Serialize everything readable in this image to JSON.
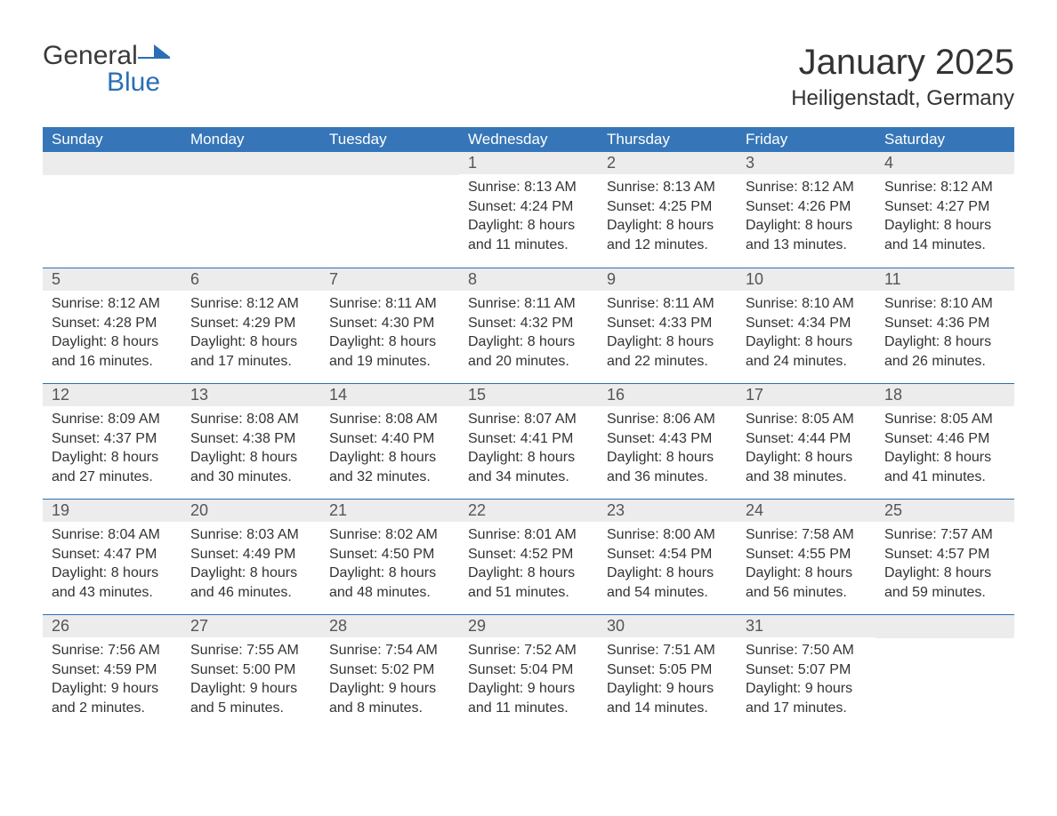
{
  "brand": {
    "text_general": "General",
    "text_blue": "Blue",
    "general_color": "#3a3a3a",
    "blue_color": "#2a6fb5",
    "mark_color": "#2a6fb5"
  },
  "header": {
    "month_title": "January 2025",
    "location": "Heiligenstadt, Germany",
    "title_fontsize": 40,
    "location_fontsize": 24,
    "text_color": "#333333"
  },
  "styling": {
    "page_background": "#ffffff",
    "header_row_background": "#3676b8",
    "header_text_color": "#ffffff",
    "week_divider_color": "#2a6fb5",
    "daynum_row_background": "#ececec",
    "body_text_color": "#333333",
    "daynum_text_color": "#555555",
    "header_fontsize": 17,
    "daynum_fontsize": 18,
    "body_fontsize": 16,
    "columns": 7
  },
  "day_names": [
    "Sunday",
    "Monday",
    "Tuesday",
    "Wednesday",
    "Thursday",
    "Friday",
    "Saturday"
  ],
  "weeks": [
    [
      null,
      null,
      null,
      {
        "n": "1",
        "sunrise": "8:13 AM",
        "sunset": "4:24 PM",
        "daylight_h": 8,
        "daylight_m": 11
      },
      {
        "n": "2",
        "sunrise": "8:13 AM",
        "sunset": "4:25 PM",
        "daylight_h": 8,
        "daylight_m": 12
      },
      {
        "n": "3",
        "sunrise": "8:12 AM",
        "sunset": "4:26 PM",
        "daylight_h": 8,
        "daylight_m": 13
      },
      {
        "n": "4",
        "sunrise": "8:12 AM",
        "sunset": "4:27 PM",
        "daylight_h": 8,
        "daylight_m": 14
      }
    ],
    [
      {
        "n": "5",
        "sunrise": "8:12 AM",
        "sunset": "4:28 PM",
        "daylight_h": 8,
        "daylight_m": 16
      },
      {
        "n": "6",
        "sunrise": "8:12 AM",
        "sunset": "4:29 PM",
        "daylight_h": 8,
        "daylight_m": 17
      },
      {
        "n": "7",
        "sunrise": "8:11 AM",
        "sunset": "4:30 PM",
        "daylight_h": 8,
        "daylight_m": 19
      },
      {
        "n": "8",
        "sunrise": "8:11 AM",
        "sunset": "4:32 PM",
        "daylight_h": 8,
        "daylight_m": 20
      },
      {
        "n": "9",
        "sunrise": "8:11 AM",
        "sunset": "4:33 PM",
        "daylight_h": 8,
        "daylight_m": 22
      },
      {
        "n": "10",
        "sunrise": "8:10 AM",
        "sunset": "4:34 PM",
        "daylight_h": 8,
        "daylight_m": 24
      },
      {
        "n": "11",
        "sunrise": "8:10 AM",
        "sunset": "4:36 PM",
        "daylight_h": 8,
        "daylight_m": 26
      }
    ],
    [
      {
        "n": "12",
        "sunrise": "8:09 AM",
        "sunset": "4:37 PM",
        "daylight_h": 8,
        "daylight_m": 27
      },
      {
        "n": "13",
        "sunrise": "8:08 AM",
        "sunset": "4:38 PM",
        "daylight_h": 8,
        "daylight_m": 30
      },
      {
        "n": "14",
        "sunrise": "8:08 AM",
        "sunset": "4:40 PM",
        "daylight_h": 8,
        "daylight_m": 32
      },
      {
        "n": "15",
        "sunrise": "8:07 AM",
        "sunset": "4:41 PM",
        "daylight_h": 8,
        "daylight_m": 34
      },
      {
        "n": "16",
        "sunrise": "8:06 AM",
        "sunset": "4:43 PM",
        "daylight_h": 8,
        "daylight_m": 36
      },
      {
        "n": "17",
        "sunrise": "8:05 AM",
        "sunset": "4:44 PM",
        "daylight_h": 8,
        "daylight_m": 38
      },
      {
        "n": "18",
        "sunrise": "8:05 AM",
        "sunset": "4:46 PM",
        "daylight_h": 8,
        "daylight_m": 41
      }
    ],
    [
      {
        "n": "19",
        "sunrise": "8:04 AM",
        "sunset": "4:47 PM",
        "daylight_h": 8,
        "daylight_m": 43
      },
      {
        "n": "20",
        "sunrise": "8:03 AM",
        "sunset": "4:49 PM",
        "daylight_h": 8,
        "daylight_m": 46
      },
      {
        "n": "21",
        "sunrise": "8:02 AM",
        "sunset": "4:50 PM",
        "daylight_h": 8,
        "daylight_m": 48
      },
      {
        "n": "22",
        "sunrise": "8:01 AM",
        "sunset": "4:52 PM",
        "daylight_h": 8,
        "daylight_m": 51
      },
      {
        "n": "23",
        "sunrise": "8:00 AM",
        "sunset": "4:54 PM",
        "daylight_h": 8,
        "daylight_m": 54
      },
      {
        "n": "24",
        "sunrise": "7:58 AM",
        "sunset": "4:55 PM",
        "daylight_h": 8,
        "daylight_m": 56
      },
      {
        "n": "25",
        "sunrise": "7:57 AM",
        "sunset": "4:57 PM",
        "daylight_h": 8,
        "daylight_m": 59
      }
    ],
    [
      {
        "n": "26",
        "sunrise": "7:56 AM",
        "sunset": "4:59 PM",
        "daylight_h": 9,
        "daylight_m": 2
      },
      {
        "n": "27",
        "sunrise": "7:55 AM",
        "sunset": "5:00 PM",
        "daylight_h": 9,
        "daylight_m": 5
      },
      {
        "n": "28",
        "sunrise": "7:54 AM",
        "sunset": "5:02 PM",
        "daylight_h": 9,
        "daylight_m": 8
      },
      {
        "n": "29",
        "sunrise": "7:52 AM",
        "sunset": "5:04 PM",
        "daylight_h": 9,
        "daylight_m": 11
      },
      {
        "n": "30",
        "sunrise": "7:51 AM",
        "sunset": "5:05 PM",
        "daylight_h": 9,
        "daylight_m": 14
      },
      {
        "n": "31",
        "sunrise": "7:50 AM",
        "sunset": "5:07 PM",
        "daylight_h": 9,
        "daylight_m": 17
      },
      null
    ]
  ],
  "labels": {
    "sunrise_prefix": "Sunrise: ",
    "sunset_prefix": "Sunset: ",
    "daylight_prefix": "Daylight: ",
    "hours_word": " hours",
    "and_word": "and ",
    "minutes_word": " minutes."
  }
}
